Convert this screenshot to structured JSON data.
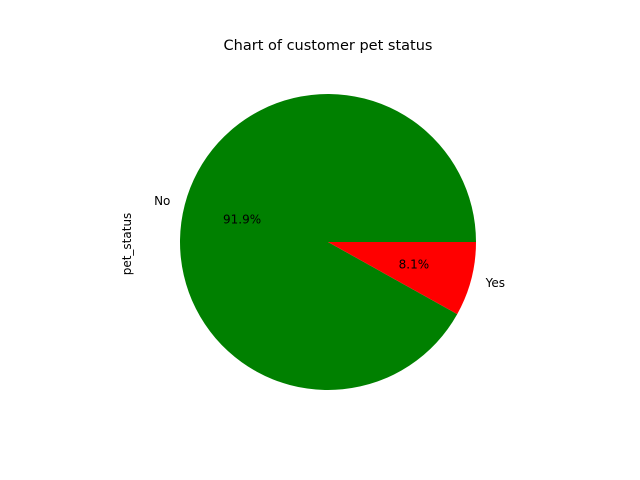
{
  "chart_data": {
    "type": "pie",
    "title": "Chart of customer pet status",
    "ylabel": "pet_status",
    "slices": [
      {
        "label": "No",
        "percent": 91.9,
        "pct_label": "91.9%",
        "color": "#008000"
      },
      {
        "label": "Yes",
        "percent": 8.1,
        "pct_label": "8.1%",
        "color": "#ff0000"
      }
    ],
    "start_angle_deg": 0,
    "direction": "counterclockwise"
  }
}
